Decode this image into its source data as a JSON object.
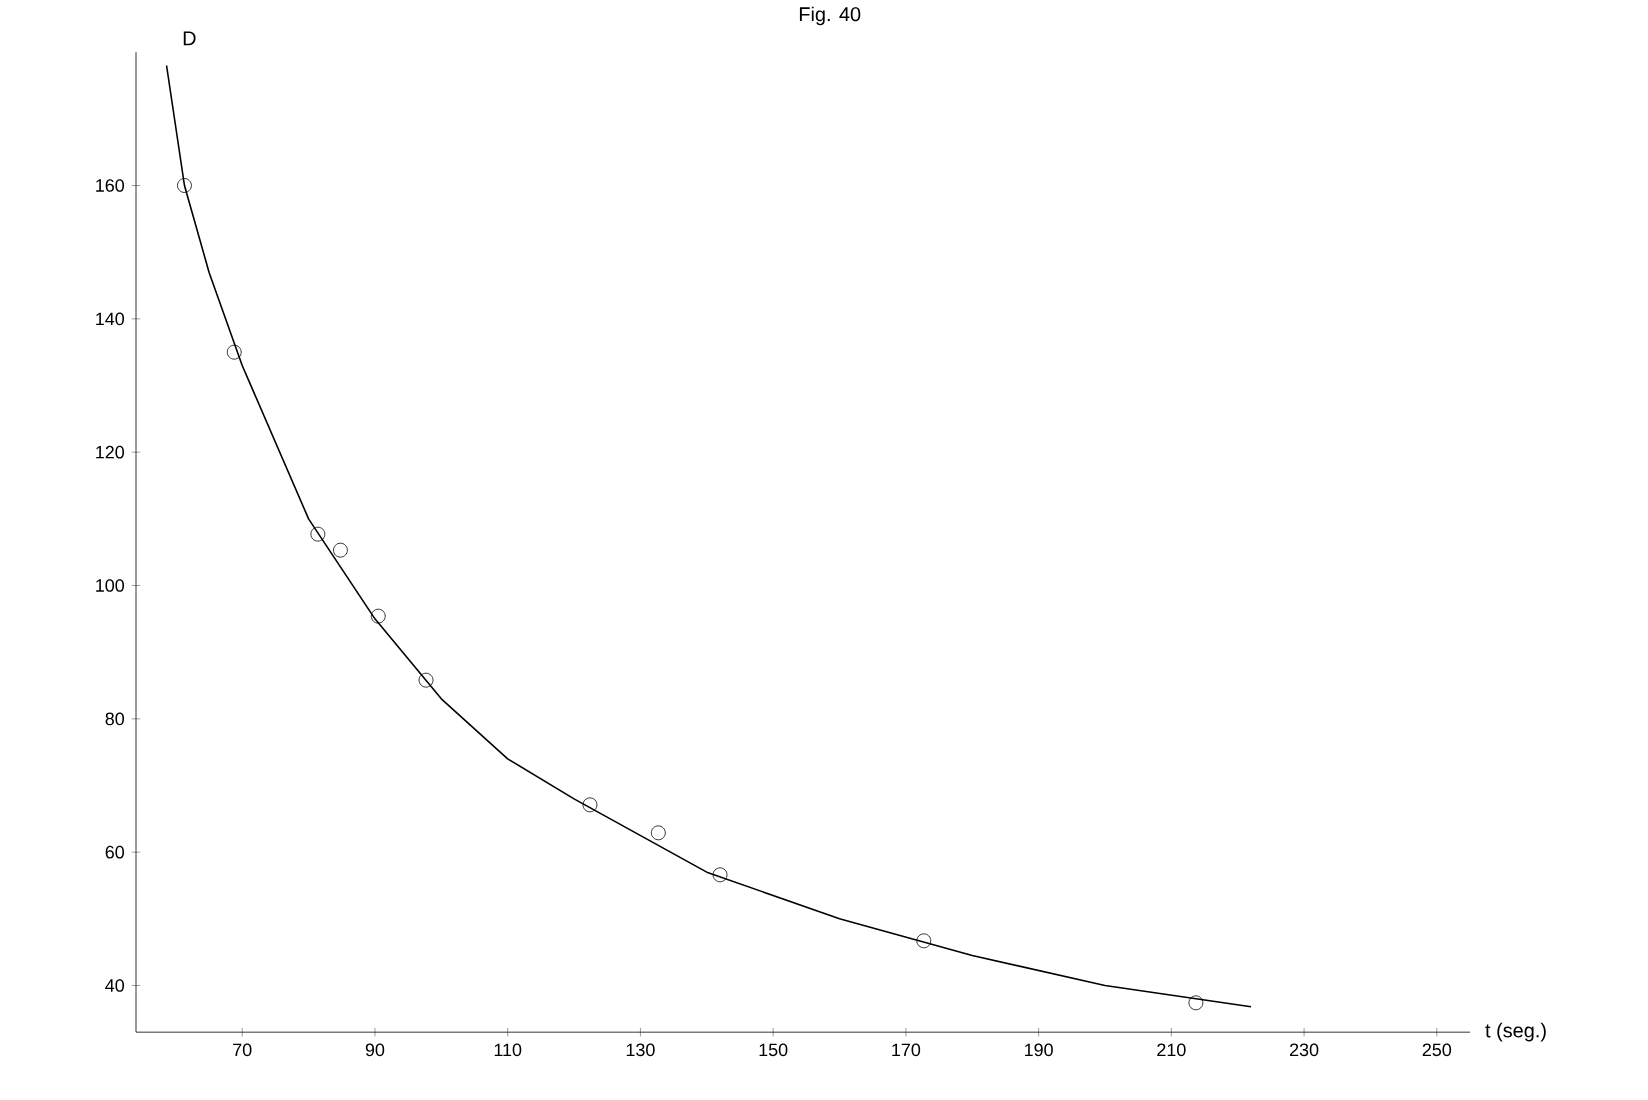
{
  "chart_data": {
    "type": "scatter",
    "title": "Fig. 40",
    "xlabel": "t (seg.)",
    "ylabel": "D",
    "xlim": [
      54,
      255
    ],
    "ylim": [
      33,
      180
    ],
    "xticks": [
      70,
      90,
      110,
      130,
      150,
      170,
      190,
      210,
      230,
      250
    ],
    "yticks": [
      40,
      60,
      80,
      100,
      120,
      140,
      160
    ],
    "grid": false,
    "series": [
      {
        "marker": "circle",
        "color": "#000000",
        "x": [
          61.3,
          68.8,
          81.4,
          84.8,
          90.5,
          97.7,
          122.4,
          132.7,
          142.0,
          172.7,
          213.7
        ],
        "values": [
          160,
          135,
          107.7,
          105.3,
          95.4,
          85.8,
          67.1,
          62.9,
          56.6,
          46.7,
          37.4
        ]
      },
      {
        "type": "line",
        "marker": "none",
        "color": "#000000",
        "x": [
          58.6,
          61.3,
          65,
          70,
          80,
          90,
          100,
          110,
          120,
          140,
          160,
          180,
          200,
          222
        ],
        "values": [
          178,
          160,
          147,
          133,
          110,
          95,
          83,
          74,
          68,
          57,
          50,
          44.5,
          40,
          36.8
        ]
      }
    ]
  }
}
